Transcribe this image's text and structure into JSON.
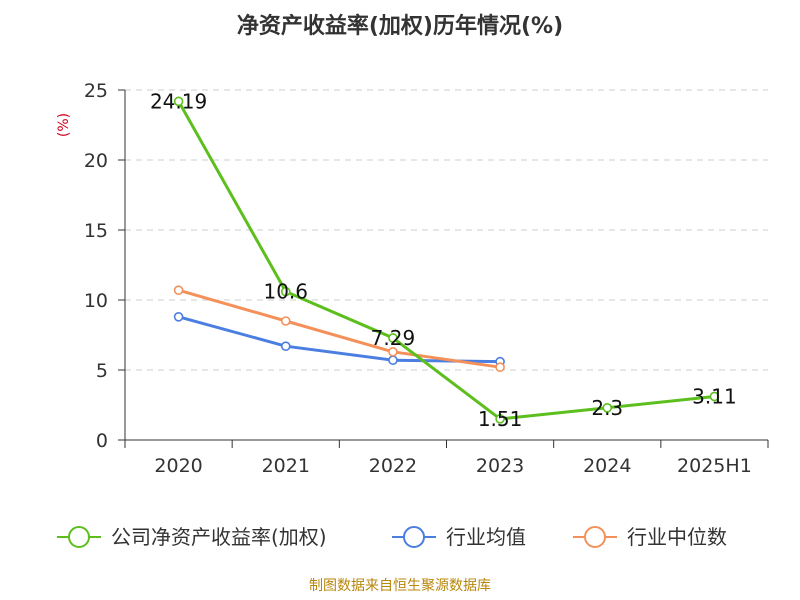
{
  "source_note": "制图数据来自恒生聚源数据库",
  "chart_data": {
    "type": "line",
    "title": "净资产收益率(加权)历年情况(%)",
    "ylabel": "(%)",
    "ylim": [
      0,
      25
    ],
    "yticks": [
      "0",
      "5",
      "10",
      "15",
      "20",
      "25"
    ],
    "categories": [
      "2020",
      "2021",
      "2022",
      "2023",
      "2024",
      "2025H1"
    ],
    "grid": true,
    "legend_position": "bottom",
    "series": [
      {
        "name": "公司净资产收益率(加权)",
        "color": "#5cbf1e",
        "values": [
          24.19,
          10.6,
          7.29,
          1.51,
          2.3,
          3.11
        ],
        "labels": [
          "24.19",
          "10.6",
          "7.29",
          "1.51",
          "2.3",
          "3.11"
        ]
      },
      {
        "name": "行业均值",
        "color": "#4a7ee0",
        "values": [
          8.8,
          6.7,
          5.7,
          5.6,
          null,
          null
        ]
      },
      {
        "name": "行业中位数",
        "color": "#f4915a",
        "values": [
          10.7,
          8.5,
          6.3,
          5.2,
          null,
          null
        ]
      }
    ]
  }
}
